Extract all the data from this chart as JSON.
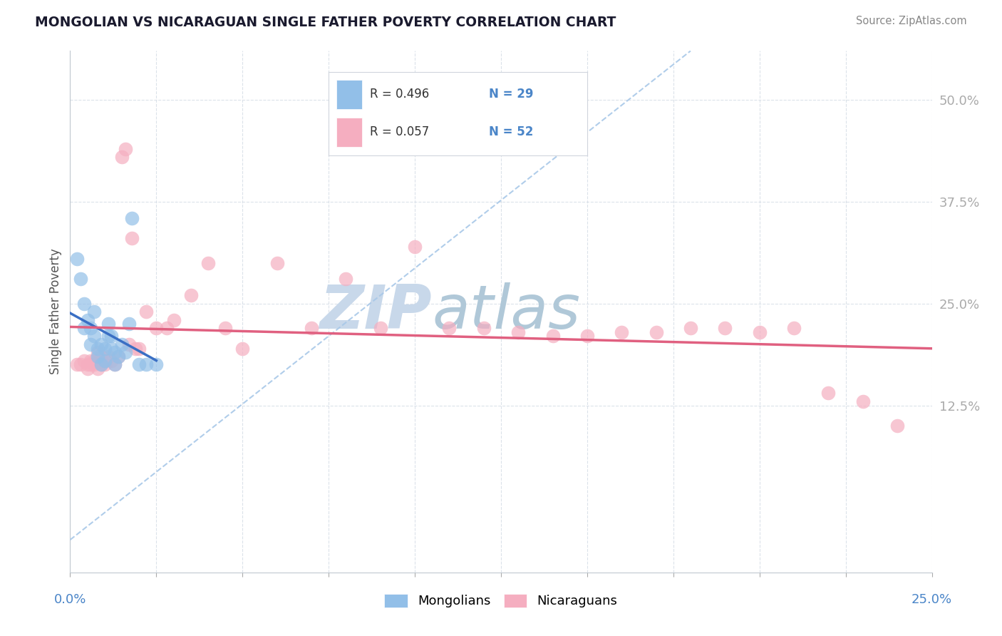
{
  "title": "MONGOLIAN VS NICARAGUAN SINGLE FATHER POVERTY CORRELATION CHART",
  "source": "Source: ZipAtlas.com",
  "ylabel": "Single Father Poverty",
  "ytick_labels": [
    "12.5%",
    "25.0%",
    "37.5%",
    "50.0%"
  ],
  "ytick_values": [
    0.125,
    0.25,
    0.375,
    0.5
  ],
  "xlim": [
    0.0,
    0.25
  ],
  "ylim": [
    -0.08,
    0.56
  ],
  "mongolian_color": "#92bfe8",
  "nicaraguan_color": "#f5aec0",
  "mongolian_line_color": "#3a6fc4",
  "nicaraguan_line_color": "#e06080",
  "ref_line_color": "#a8c8e8",
  "watermark_zip_color": "#c8d8ea",
  "watermark_atlas_color": "#b0c8d8",
  "background_color": "#ffffff",
  "mongolian_x": [
    0.002,
    0.003,
    0.004,
    0.004,
    0.005,
    0.006,
    0.006,
    0.007,
    0.007,
    0.008,
    0.008,
    0.009,
    0.009,
    0.01,
    0.01,
    0.011,
    0.011,
    0.012,
    0.012,
    0.013,
    0.013,
    0.014,
    0.015,
    0.016,
    0.017,
    0.018,
    0.02,
    0.022,
    0.025
  ],
  "mongolian_y": [
    0.305,
    0.28,
    0.25,
    0.22,
    0.23,
    0.22,
    0.2,
    0.24,
    0.21,
    0.195,
    0.185,
    0.2,
    0.175,
    0.195,
    0.18,
    0.225,
    0.21,
    0.21,
    0.195,
    0.19,
    0.175,
    0.185,
    0.2,
    0.19,
    0.225,
    0.355,
    0.175,
    0.175,
    0.175
  ],
  "nicaraguan_x": [
    0.002,
    0.003,
    0.004,
    0.005,
    0.005,
    0.006,
    0.006,
    0.007,
    0.007,
    0.008,
    0.008,
    0.009,
    0.009,
    0.01,
    0.01,
    0.011,
    0.012,
    0.013,
    0.014,
    0.015,
    0.016,
    0.017,
    0.018,
    0.019,
    0.02,
    0.022,
    0.025,
    0.028,
    0.03,
    0.035,
    0.04,
    0.045,
    0.05,
    0.06,
    0.07,
    0.08,
    0.09,
    0.1,
    0.11,
    0.12,
    0.13,
    0.14,
    0.15,
    0.16,
    0.17,
    0.18,
    0.19,
    0.2,
    0.21,
    0.22,
    0.23,
    0.24
  ],
  "nicaraguan_y": [
    0.175,
    0.175,
    0.18,
    0.175,
    0.17,
    0.175,
    0.18,
    0.18,
    0.175,
    0.19,
    0.17,
    0.185,
    0.175,
    0.18,
    0.175,
    0.185,
    0.18,
    0.175,
    0.185,
    0.43,
    0.44,
    0.2,
    0.33,
    0.195,
    0.195,
    0.24,
    0.22,
    0.22,
    0.23,
    0.26,
    0.3,
    0.22,
    0.195,
    0.3,
    0.22,
    0.28,
    0.22,
    0.32,
    0.22,
    0.22,
    0.215,
    0.21,
    0.21,
    0.215,
    0.215,
    0.22,
    0.22,
    0.215,
    0.22,
    0.14,
    0.13,
    0.1
  ]
}
